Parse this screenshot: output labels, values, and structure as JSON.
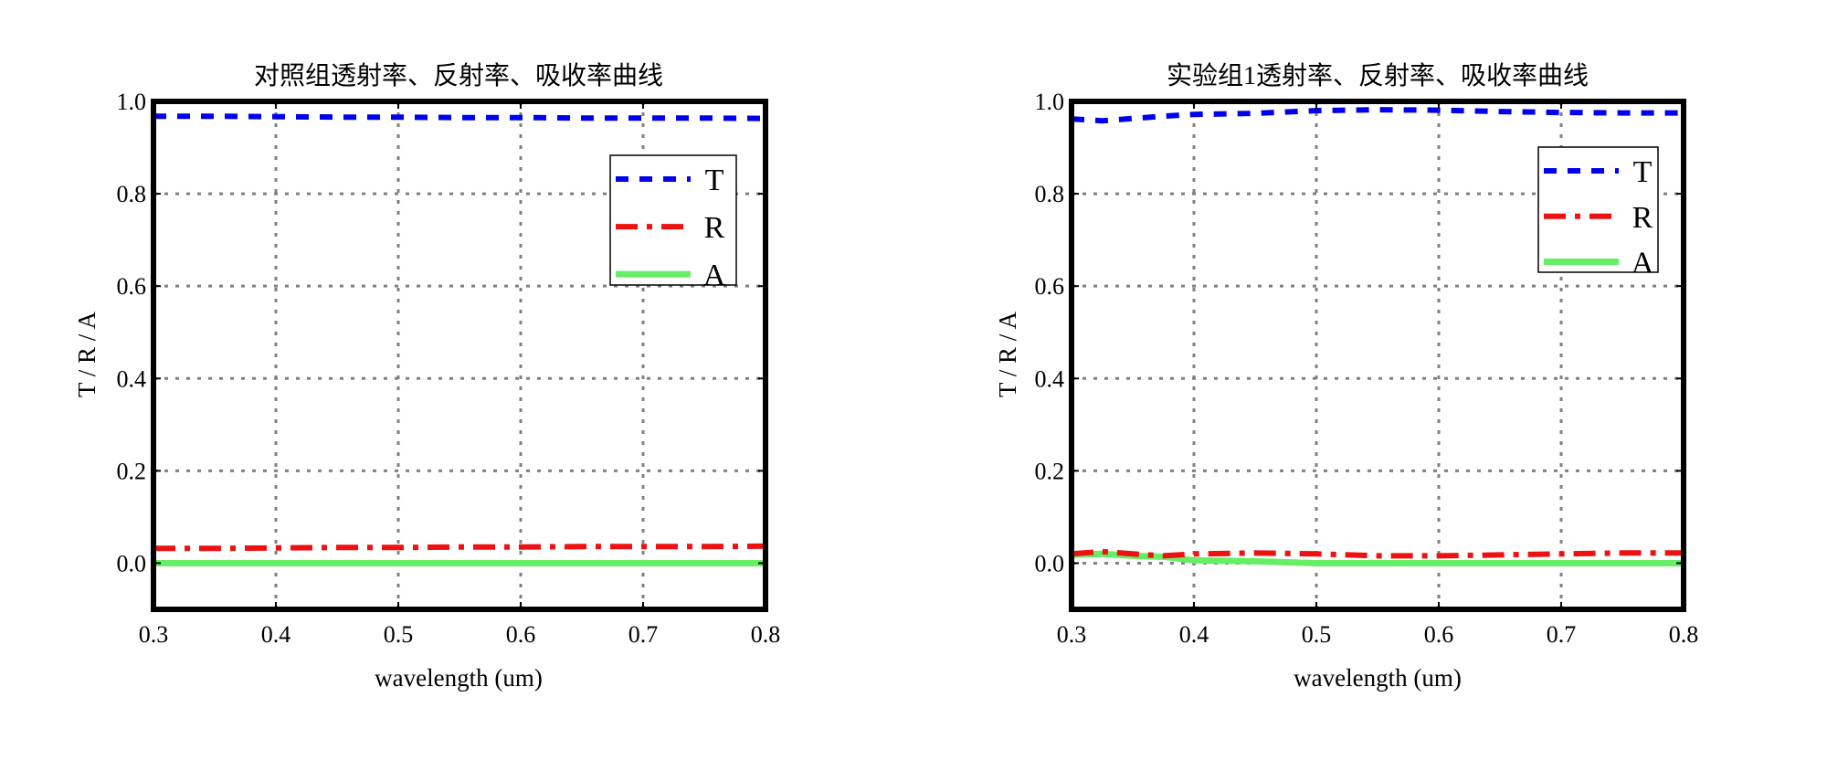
{
  "figure": {
    "colors": {
      "T": "#0000ee",
      "R": "#ee1111",
      "A": "#66ee66",
      "grid": "#808080"
    }
  },
  "chart_data": [
    {
      "type": "line",
      "title": "对照组透射率、反射率、吸收率曲线",
      "xlabel": "wavelength (um)",
      "ylabel": "T / R / A",
      "xlim": [
        0.3,
        0.8
      ],
      "ylim": [
        -0.1,
        1.0
      ],
      "xticks": [
        0.3,
        0.4,
        0.5,
        0.6,
        0.7,
        0.8
      ],
      "xtick_labels": [
        "0.3",
        "0.4",
        "0.5",
        "0.6",
        "0.7",
        "0.8"
      ],
      "yticks": [
        0.0,
        0.2,
        0.4,
        0.6,
        0.8,
        1.0
      ],
      "ytick_labels": [
        "0.0",
        "0.2",
        "0.4",
        "0.6",
        "0.8",
        "1.0"
      ],
      "grid": true,
      "legend_position": "upper-right",
      "series": [
        {
          "name": "T",
          "style": "dashed",
          "color": "#0000ee",
          "x": [
            0.3,
            0.35,
            0.4,
            0.45,
            0.5,
            0.55,
            0.6,
            0.65,
            0.7,
            0.75,
            0.8
          ],
          "y": [
            0.968,
            0.968,
            0.967,
            0.966,
            0.966,
            0.965,
            0.965,
            0.964,
            0.964,
            0.964,
            0.963
          ]
        },
        {
          "name": "R",
          "style": "dashdot",
          "color": "#ee1111",
          "x": [
            0.3,
            0.35,
            0.4,
            0.45,
            0.5,
            0.55,
            0.6,
            0.65,
            0.7,
            0.75,
            0.8
          ],
          "y": [
            0.032,
            0.032,
            0.033,
            0.034,
            0.034,
            0.035,
            0.035,
            0.036,
            0.036,
            0.036,
            0.037
          ]
        },
        {
          "name": "A",
          "style": "solid",
          "color": "#66ee66",
          "x": [
            0.3,
            0.35,
            0.4,
            0.45,
            0.5,
            0.55,
            0.6,
            0.65,
            0.7,
            0.75,
            0.8
          ],
          "y": [
            0.0,
            0.0,
            0.0,
            0.0,
            0.0,
            0.0,
            0.0,
            0.0,
            0.0,
            0.0,
            0.0
          ]
        }
      ]
    },
    {
      "type": "line",
      "title": "实验组1透射率、反射率、吸收率曲线",
      "xlabel": "wavelength (um)",
      "ylabel": "T / R / A",
      "xlim": [
        0.3,
        0.8
      ],
      "ylim": [
        -0.1,
        1.0
      ],
      "xticks": [
        0.3,
        0.4,
        0.5,
        0.6,
        0.7,
        0.8
      ],
      "xtick_labels": [
        "0.3",
        "0.4",
        "0.5",
        "0.6",
        "0.7",
        "0.8"
      ],
      "yticks": [
        0.0,
        0.2,
        0.4,
        0.6,
        0.8,
        1.0
      ],
      "ytick_labels": [
        "0.0",
        "0.2",
        "0.4",
        "0.6",
        "0.8",
        "1.0"
      ],
      "grid": true,
      "legend_position": "upper-right",
      "series": [
        {
          "name": "T",
          "style": "dashed",
          "color": "#0000ee",
          "x": [
            0.3,
            0.325,
            0.35,
            0.375,
            0.4,
            0.45,
            0.5,
            0.55,
            0.6,
            0.65,
            0.7,
            0.75,
            0.8
          ],
          "y": [
            0.962,
            0.958,
            0.963,
            0.968,
            0.972,
            0.974,
            0.98,
            0.982,
            0.981,
            0.978,
            0.976,
            0.975,
            0.975
          ]
        },
        {
          "name": "R",
          "style": "dashdot",
          "color": "#ee1111",
          "x": [
            0.3,
            0.325,
            0.35,
            0.375,
            0.4,
            0.45,
            0.5,
            0.55,
            0.6,
            0.65,
            0.7,
            0.75,
            0.8
          ],
          "y": [
            0.02,
            0.025,
            0.02,
            0.016,
            0.02,
            0.022,
            0.02,
            0.016,
            0.016,
            0.018,
            0.02,
            0.022,
            0.022
          ]
        },
        {
          "name": "A",
          "style": "solid",
          "color": "#66ee66",
          "x": [
            0.3,
            0.325,
            0.35,
            0.375,
            0.4,
            0.45,
            0.5,
            0.55,
            0.6,
            0.65,
            0.7,
            0.75,
            0.8
          ],
          "y": [
            0.018,
            0.02,
            0.016,
            0.014,
            0.006,
            0.004,
            0.0,
            0.0,
            0.0,
            0.0,
            0.0,
            0.0,
            0.0
          ]
        }
      ]
    }
  ]
}
